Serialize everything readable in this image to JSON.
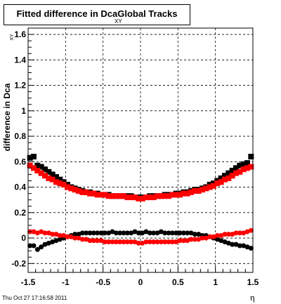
{
  "title": {
    "main": "Fitted difference in DcaGlobal Tracks",
    "subscript": "XY"
  },
  "footer_timestamp": "Thu Oct 27 17:16:58 2011",
  "colors": {
    "series_a": "#000000",
    "series_b": "#ff0000",
    "grid": "#000000",
    "frame": "#000000"
  },
  "chart_data": {
    "type": "scatter",
    "title": "Fitted difference in DcaGlobal Tracks",
    "xlabel": "η",
    "ylabel": "difference in Dca",
    "ylabel_subscript": "XY",
    "xlim": [
      -1.5,
      1.5
    ],
    "ylim": [
      -0.27,
      1.65
    ],
    "x_ticks": [
      {
        "v": -1.5,
        "label": "-1.5"
      },
      {
        "v": -1,
        "label": "-1"
      },
      {
        "v": -0.5,
        "label": "-0.5"
      },
      {
        "v": 0,
        "label": "0"
      },
      {
        "v": 0.5,
        "label": "0.5"
      },
      {
        "v": 1,
        "label": "1"
      },
      {
        "v": 1.5,
        "label": "1.5"
      }
    ],
    "y_ticks": [
      {
        "v": -0.2,
        "label": "-0.2"
      },
      {
        "v": 0,
        "label": "0"
      },
      {
        "v": 0.2,
        "label": "0.2"
      },
      {
        "v": 0.4,
        "label": "0.4"
      },
      {
        "v": 0.6,
        "label": "0.6"
      },
      {
        "v": 0.8,
        "label": "0.8"
      },
      {
        "v": 1,
        "label": "1"
      },
      {
        "v": 1.2,
        "label": "1.2"
      },
      {
        "v": 1.4,
        "label": "1.4"
      },
      {
        "v": 1.6,
        "label": "1.6"
      }
    ],
    "grid": true,
    "series": [
      {
        "color": "#000000",
        "marker": "square",
        "x": [
          -1.475,
          -1.425,
          -1.375,
          -1.325,
          -1.275,
          -1.225,
          -1.175,
          -1.125,
          -1.075,
          -1.025,
          -0.975,
          -0.925,
          -0.875,
          -0.825,
          -0.775,
          -0.725,
          -0.675,
          -0.625,
          -0.575,
          -0.525,
          -0.475,
          -0.425,
          -0.375,
          -0.325,
          -0.275,
          -0.225,
          -0.175,
          -0.125,
          -0.075,
          -0.025,
          0.025,
          0.075,
          0.125,
          0.175,
          0.225,
          0.275,
          0.325,
          0.375,
          0.425,
          0.475,
          0.525,
          0.575,
          0.625,
          0.675,
          0.725,
          0.775,
          0.825,
          0.875,
          0.925,
          0.975,
          1.025,
          1.075,
          1.125,
          1.175,
          1.225,
          1.275,
          1.325,
          1.375,
          1.425,
          1.475
        ],
        "y": [
          0.63,
          0.64,
          0.57,
          0.56,
          0.54,
          0.52,
          0.5,
          0.48,
          0.46,
          0.44,
          0.42,
          0.4,
          0.39,
          0.38,
          0.37,
          0.36,
          0.36,
          0.35,
          0.35,
          0.34,
          0.34,
          0.34,
          0.33,
          0.33,
          0.33,
          0.33,
          0.33,
          0.33,
          0.32,
          0.32,
          0.32,
          0.32,
          0.33,
          0.33,
          0.33,
          0.33,
          0.34,
          0.34,
          0.34,
          0.35,
          0.35,
          0.36,
          0.36,
          0.37,
          0.38,
          0.38,
          0.39,
          0.4,
          0.42,
          0.43,
          0.45,
          0.47,
          0.49,
          0.51,
          0.53,
          0.55,
          0.57,
          0.58,
          0.59,
          0.64
        ]
      },
      {
        "color": "#ff0000",
        "marker": "square",
        "x": [
          -1.475,
          -1.425,
          -1.375,
          -1.325,
          -1.275,
          -1.225,
          -1.175,
          -1.125,
          -1.075,
          -1.025,
          -0.975,
          -0.925,
          -0.875,
          -0.825,
          -0.775,
          -0.725,
          -0.675,
          -0.625,
          -0.575,
          -0.525,
          -0.475,
          -0.425,
          -0.375,
          -0.325,
          -0.275,
          -0.225,
          -0.175,
          -0.125,
          -0.075,
          -0.025,
          0.025,
          0.075,
          0.125,
          0.175,
          0.225,
          0.275,
          0.325,
          0.375,
          0.425,
          0.475,
          0.525,
          0.575,
          0.625,
          0.675,
          0.725,
          0.775,
          0.825,
          0.875,
          0.925,
          0.975,
          1.025,
          1.075,
          1.125,
          1.175,
          1.225,
          1.275,
          1.325,
          1.375,
          1.425,
          1.475
        ],
        "y": [
          0.57,
          0.55,
          0.53,
          0.51,
          0.49,
          0.47,
          0.46,
          0.44,
          0.43,
          0.42,
          0.4,
          0.39,
          0.38,
          0.37,
          0.36,
          0.36,
          0.35,
          0.35,
          0.34,
          0.34,
          0.34,
          0.33,
          0.33,
          0.33,
          0.33,
          0.33,
          0.32,
          0.32,
          0.32,
          0.31,
          0.31,
          0.32,
          0.32,
          0.32,
          0.33,
          0.33,
          0.33,
          0.33,
          0.34,
          0.34,
          0.34,
          0.35,
          0.35,
          0.36,
          0.37,
          0.37,
          0.38,
          0.39,
          0.4,
          0.41,
          0.43,
          0.44,
          0.46,
          0.47,
          0.49,
          0.51,
          0.52,
          0.54,
          0.55,
          0.56
        ]
      },
      {
        "color": "#000000",
        "marker": "circle",
        "x": [
          -1.475,
          -1.425,
          -1.375,
          -1.325,
          -1.275,
          -1.225,
          -1.175,
          -1.125,
          -1.075,
          -1.025,
          -0.975,
          -0.925,
          -0.875,
          -0.825,
          -0.775,
          -0.725,
          -0.675,
          -0.625,
          -0.575,
          -0.525,
          -0.475,
          -0.425,
          -0.375,
          -0.325,
          -0.275,
          -0.225,
          -0.175,
          -0.125,
          -0.075,
          -0.025,
          0.025,
          0.075,
          0.125,
          0.175,
          0.225,
          0.275,
          0.325,
          0.375,
          0.425,
          0.475,
          0.525,
          0.575,
          0.625,
          0.675,
          0.725,
          0.775,
          0.825,
          0.875,
          0.925,
          0.975,
          1.025,
          1.075,
          1.125,
          1.175,
          1.225,
          1.275,
          1.325,
          1.375,
          1.425,
          1.475
        ],
        "y": [
          -0.06,
          -0.06,
          -0.09,
          -0.07,
          -0.05,
          -0.04,
          -0.03,
          -0.02,
          -0.01,
          0.0,
          0.01,
          0.02,
          0.03,
          0.03,
          0.04,
          0.04,
          0.04,
          0.04,
          0.04,
          0.04,
          0.04,
          0.04,
          0.05,
          0.04,
          0.04,
          0.04,
          0.04,
          0.04,
          0.05,
          0.04,
          0.04,
          0.05,
          0.04,
          0.04,
          0.04,
          0.05,
          0.04,
          0.04,
          0.04,
          0.04,
          0.04,
          0.04,
          0.04,
          0.04,
          0.03,
          0.03,
          0.02,
          0.02,
          0.01,
          0.0,
          -0.01,
          -0.02,
          -0.03,
          -0.04,
          -0.05,
          -0.05,
          -0.06,
          -0.06,
          -0.07,
          -0.08
        ]
      },
      {
        "color": "#ff0000",
        "marker": "circle",
        "x": [
          -1.475,
          -1.425,
          -1.375,
          -1.325,
          -1.275,
          -1.225,
          -1.175,
          -1.125,
          -1.075,
          -1.025,
          -0.975,
          -0.925,
          -0.875,
          -0.825,
          -0.775,
          -0.725,
          -0.675,
          -0.625,
          -0.575,
          -0.525,
          -0.475,
          -0.425,
          -0.375,
          -0.325,
          -0.275,
          -0.225,
          -0.175,
          -0.125,
          -0.075,
          -0.025,
          0.025,
          0.075,
          0.125,
          0.175,
          0.225,
          0.275,
          0.325,
          0.375,
          0.425,
          0.475,
          0.525,
          0.575,
          0.625,
          0.675,
          0.725,
          0.775,
          0.825,
          0.875,
          0.925,
          0.975,
          1.025,
          1.075,
          1.125,
          1.175,
          1.225,
          1.275,
          1.325,
          1.375,
          1.425,
          1.475
        ],
        "y": [
          0.05,
          0.05,
          0.04,
          0.05,
          0.04,
          0.04,
          0.03,
          0.03,
          0.02,
          0.02,
          0.01,
          0.01,
          0.0,
          0.0,
          -0.01,
          -0.01,
          -0.02,
          -0.02,
          -0.02,
          -0.02,
          -0.03,
          -0.03,
          -0.03,
          -0.03,
          -0.03,
          -0.03,
          -0.03,
          -0.03,
          -0.03,
          -0.04,
          -0.04,
          -0.03,
          -0.03,
          -0.03,
          -0.03,
          -0.03,
          -0.03,
          -0.03,
          -0.03,
          -0.03,
          -0.02,
          -0.02,
          -0.02,
          -0.01,
          -0.01,
          -0.01,
          0.0,
          0.0,
          0.01,
          0.01,
          0.02,
          0.02,
          0.03,
          0.03,
          0.03,
          0.04,
          0.04,
          0.04,
          0.05,
          0.06
        ]
      }
    ]
  }
}
